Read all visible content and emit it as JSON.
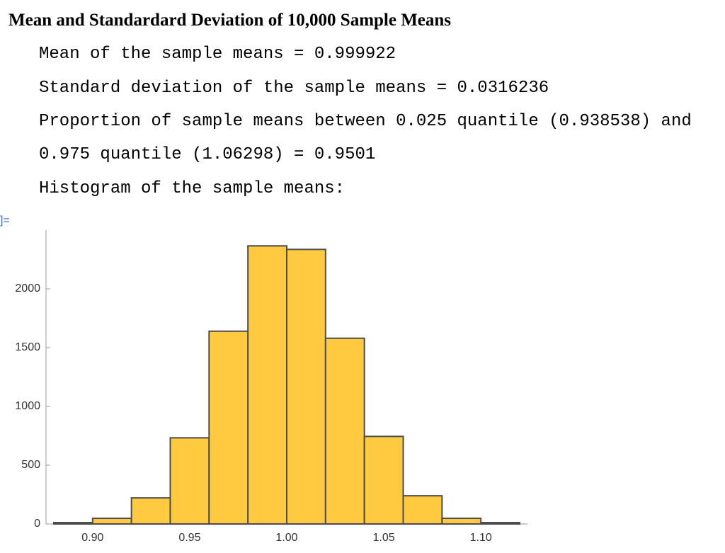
{
  "header": {
    "title": "Mean and Standardard Deviation of 10,000 Sample Means"
  },
  "lines": [
    "Mean of the sample means = 0.999922",
    "Standard deviation of the sample means = 0.0316236",
    "Proportion of sample means between 0.025 quantile (0.938538) and",
    "0.975 quantile (1.06298) = 0.9501",
    "Histogram of the sample means:"
  ],
  "output_label": "]=",
  "chart_data": {
    "type": "histogram",
    "color": "#ffc940",
    "bins": [
      0.88,
      0.9,
      0.92,
      0.94,
      0.96,
      0.98,
      1.0,
      1.02,
      1.04,
      1.06,
      1.08,
      1.1,
      1.12
    ],
    "values": [
      12,
      48,
      222,
      733,
      1640,
      2366,
      2336,
      1580,
      745,
      240,
      48,
      12
    ],
    "xlim": [
      0.876,
      1.124
    ],
    "ylim": [
      0,
      2500
    ],
    "xticks": [
      {
        "value": 0.9,
        "label": "0.90"
      },
      0.95,
      {
        "value": 1.0,
        "label": "1.00"
      },
      1.05,
      {
        "value": 1.1,
        "label": "1.10"
      }
    ],
    "yticks": [
      0,
      500,
      1000,
      1500,
      2000
    ]
  }
}
